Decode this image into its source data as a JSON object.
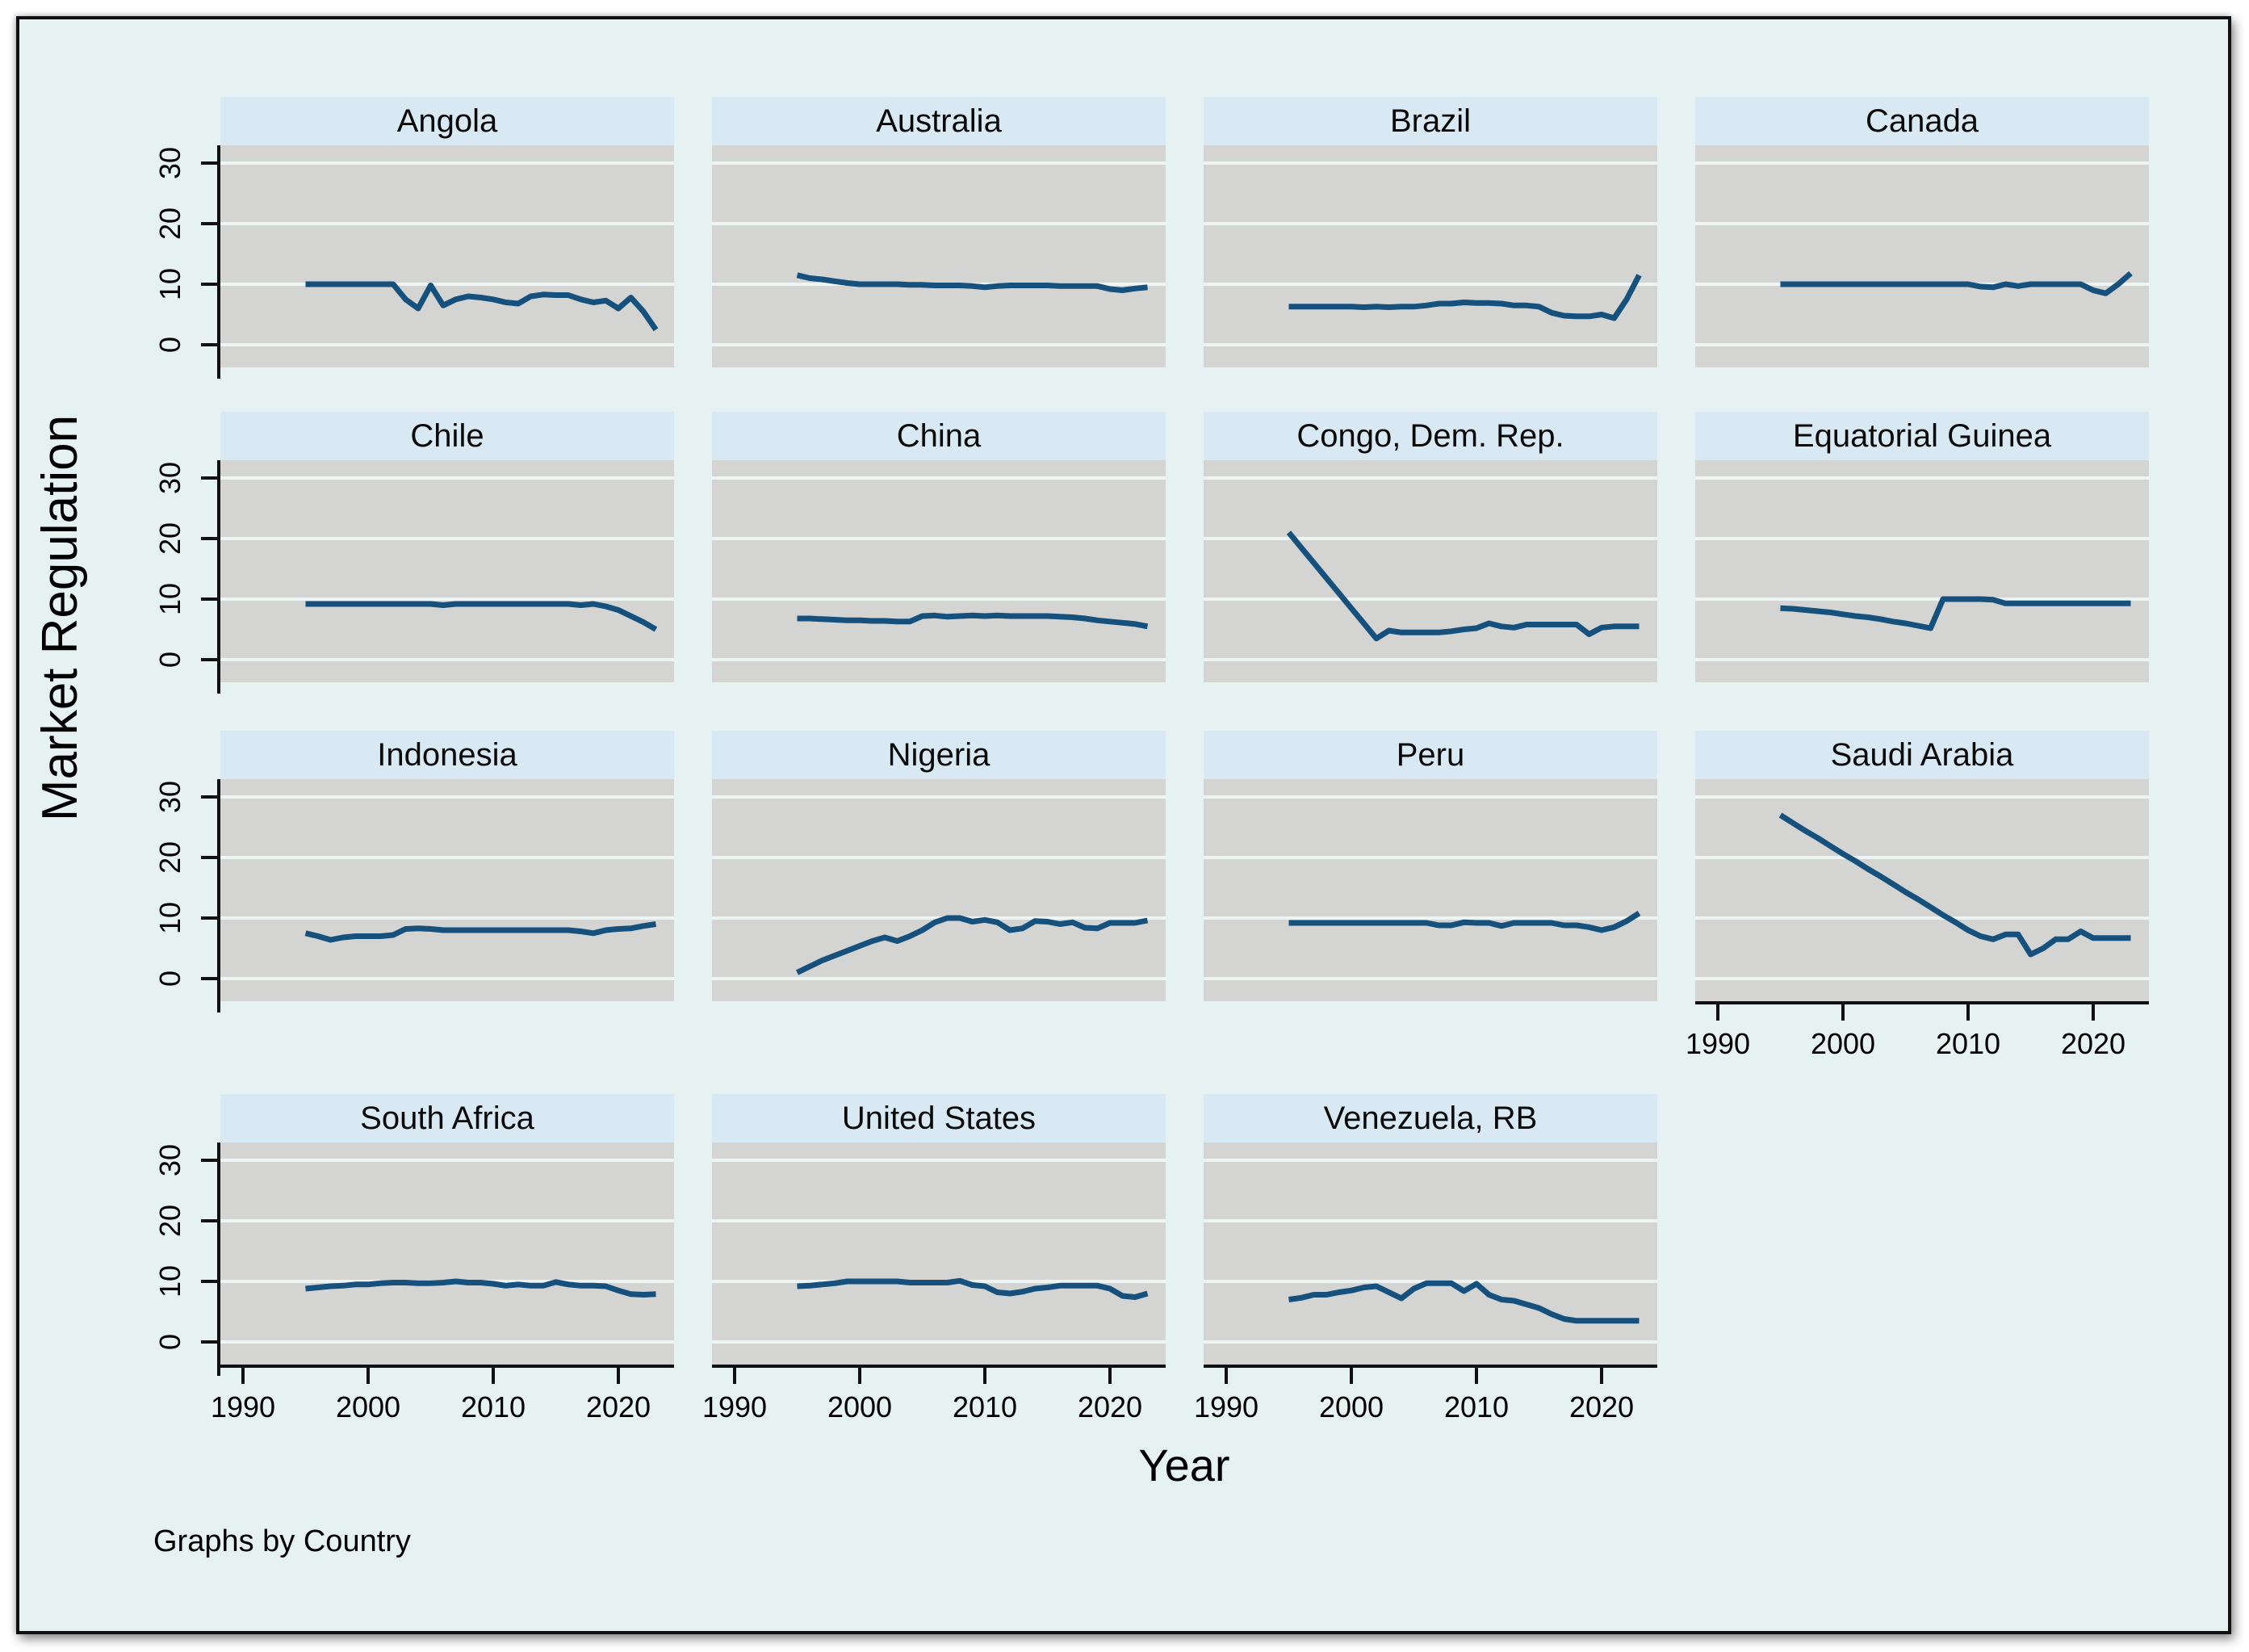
{
  "figure": {
    "ylabel": "Market Regulation",
    "xlabel": "Year",
    "note": "Graphs by Country"
  },
  "colors": {
    "figure_bg": "#e6f2f1",
    "panel_header_bg": "#d9e9f3",
    "plot_bg": "#d4d4d3",
    "gridline": "#edf5f4",
    "line": "#16507c",
    "axis": "#101010"
  },
  "chart_data": {
    "type": "line",
    "title": "",
    "ylabel": "Market Regulation",
    "xlabel": "Year",
    "note": "Graphs by Country",
    "grid": true,
    "legend": "none",
    "ylim": [
      -3.5,
      33
    ],
    "xlim": [
      1988.2,
      2024.8
    ],
    "y_ticks": [
      0,
      10,
      20,
      30
    ],
    "x_ticks": [
      1990,
      2000,
      2010,
      2020
    ],
    "years": [
      1995,
      1996,
      1997,
      1998,
      1999,
      2000,
      2001,
      2002,
      2003,
      2004,
      2005,
      2006,
      2007,
      2008,
      2009,
      2010,
      2011,
      2012,
      2013,
      2014,
      2015,
      2016,
      2017,
      2018,
      2019,
      2020,
      2021,
      2022,
      2023
    ],
    "panels": [
      {
        "country": "Angola",
        "values": [
          10,
          10,
          10,
          10,
          10,
          10,
          10,
          10,
          7.5,
          6,
          9.8,
          6.5,
          7.5,
          8,
          7.8,
          7.5,
          7,
          6.8,
          8,
          8.3,
          8.2,
          8.2,
          7.5,
          7,
          7.3,
          6,
          7.8,
          5.5,
          2.5
        ]
      },
      {
        "country": "Australia",
        "values": [
          11.5,
          11,
          10.8,
          10.5,
          10.2,
          10,
          10,
          10,
          10,
          9.9,
          9.9,
          9.8,
          9.8,
          9.8,
          9.7,
          9.5,
          9.7,
          9.8,
          9.8,
          9.8,
          9.8,
          9.7,
          9.7,
          9.7,
          9.7,
          9.2,
          9,
          9.3,
          9.5
        ]
      },
      {
        "country": "Brazil",
        "values": [
          6.3,
          6.3,
          6.3,
          6.3,
          6.3,
          6.3,
          6.2,
          6.3,
          6.2,
          6.3,
          6.3,
          6.5,
          6.8,
          6.8,
          7,
          6.9,
          6.9,
          6.8,
          6.5,
          6.5,
          6.3,
          5.3,
          4.8,
          4.7,
          4.7,
          5,
          4.4,
          7.5,
          11.5
        ]
      },
      {
        "country": "Canada",
        "values": [
          10,
          10,
          10,
          10,
          10,
          10,
          10,
          10,
          10,
          10,
          10,
          10,
          10,
          10,
          10,
          10,
          9.6,
          9.5,
          10,
          9.7,
          10,
          10,
          10,
          10,
          10,
          9,
          8.5,
          10,
          11.8
        ]
      },
      {
        "country": "Chile",
        "values": [
          9.2,
          9.2,
          9.2,
          9.2,
          9.2,
          9.2,
          9.2,
          9.2,
          9.2,
          9.2,
          9.2,
          9,
          9.2,
          9.2,
          9.2,
          9.2,
          9.2,
          9.2,
          9.2,
          9.2,
          9.2,
          9.2,
          9,
          9.2,
          8.8,
          8.2,
          7.2,
          6.2,
          5
        ]
      },
      {
        "country": "China",
        "values": [
          6.8,
          6.8,
          6.7,
          6.6,
          6.5,
          6.5,
          6.4,
          6.4,
          6.3,
          6.3,
          7.2,
          7.3,
          7.1,
          7.2,
          7.3,
          7.2,
          7.3,
          7.2,
          7.2,
          7.2,
          7.2,
          7.1,
          7,
          6.8,
          6.5,
          6.3,
          6.1,
          5.9,
          5.5
        ]
      },
      {
        "country": "Congo, Dem. Rep.",
        "values": [
          21,
          18.5,
          16,
          13.5,
          11,
          8.5,
          6,
          3.5,
          4.8,
          4.5,
          4.5,
          4.5,
          4.5,
          4.7,
          5,
          5.2,
          6,
          5.5,
          5.3,
          5.8,
          5.8,
          5.8,
          5.8,
          5.8,
          4.2,
          5.3,
          5.5,
          5.5,
          5.5
        ]
      },
      {
        "country": "Equatorial Guinea",
        "values": [
          8.5,
          8.4,
          8.2,
          8,
          7.8,
          7.5,
          7.2,
          7,
          6.7,
          6.3,
          6,
          5.6,
          5.2,
          10,
          10,
          10,
          10,
          9.9,
          9.3,
          9.3,
          9.3,
          9.3,
          9.3,
          9.3,
          9.3,
          9.3,
          9.3,
          9.3,
          9.3
        ]
      },
      {
        "country": "Indonesia",
        "values": [
          7.5,
          7,
          6.4,
          6.8,
          7,
          7,
          7,
          7.2,
          8.2,
          8.3,
          8.2,
          8,
          8,
          8,
          8,
          8,
          8,
          8,
          8,
          8,
          8,
          8,
          7.8,
          7.5,
          8,
          8.2,
          8.3,
          8.7,
          9
        ]
      },
      {
        "country": "Nigeria",
        "values": [
          1,
          2,
          3,
          3.8,
          4.6,
          5.4,
          6.2,
          6.8,
          6.2,
          7,
          8,
          9.3,
          10,
          10,
          9.4,
          9.7,
          9.3,
          8,
          8.3,
          9.5,
          9.4,
          9,
          9.3,
          8.4,
          8.3,
          9.2,
          9.2,
          9.2,
          9.6
        ]
      },
      {
        "country": "Peru",
        "values": [
          9.2,
          9.2,
          9.2,
          9.2,
          9.2,
          9.2,
          9.2,
          9.2,
          9.2,
          9.2,
          9.2,
          9.2,
          8.8,
          8.8,
          9.3,
          9.2,
          9.2,
          8.7,
          9.2,
          9.2,
          9.2,
          9.2,
          8.8,
          8.8,
          8.5,
          8,
          8.5,
          9.5,
          10.8
        ]
      },
      {
        "country": "Saudi Arabia",
        "values": [
          27,
          25.7,
          24.4,
          23.2,
          21.9,
          20.6,
          19.4,
          18.1,
          16.9,
          15.6,
          14.3,
          13.1,
          11.8,
          10.5,
          9.3,
          8,
          7,
          6.5,
          7.3,
          7.3,
          4,
          5,
          6.5,
          6.5,
          7.8,
          6.7,
          6.7,
          6.7,
          6.7
        ]
      },
      {
        "country": "South Africa",
        "values": [
          8.8,
          9,
          9.2,
          9.3,
          9.5,
          9.5,
          9.7,
          9.8,
          9.8,
          9.7,
          9.7,
          9.8,
          10,
          9.8,
          9.8,
          9.6,
          9.3,
          9.5,
          9.3,
          9.3,
          9.9,
          9.5,
          9.3,
          9.3,
          9.2,
          8.5,
          7.9,
          7.8,
          7.9
        ]
      },
      {
        "country": "United States",
        "values": [
          9.2,
          9.3,
          9.5,
          9.7,
          10,
          10,
          10,
          10,
          10,
          9.8,
          9.8,
          9.8,
          9.8,
          10.1,
          9.4,
          9.2,
          8.2,
          8,
          8.3,
          8.8,
          9,
          9.3,
          9.3,
          9.3,
          9.3,
          8.8,
          7.6,
          7.4,
          8
        ]
      },
      {
        "country": "Venezuela, RB",
        "values": [
          7,
          7.3,
          7.8,
          7.8,
          8.2,
          8.5,
          9,
          9.2,
          8.2,
          7.2,
          8.8,
          9.7,
          9.7,
          9.7,
          8.4,
          9.6,
          7.8,
          7,
          6.8,
          6.2,
          5.6,
          4.6,
          3.8,
          3.5,
          3.5,
          3.5,
          3.5,
          3.5,
          3.5
        ]
      }
    ]
  }
}
